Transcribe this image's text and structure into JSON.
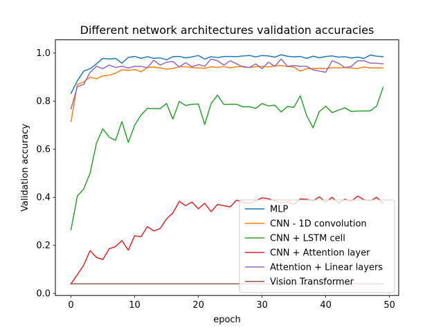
{
  "chart_data": {
    "type": "line",
    "title": "Different network architectures validation accuracies",
    "xlabel": "epoch",
    "ylabel": "Validation accuracy",
    "xlim": [
      -2.45,
      51.45
    ],
    "ylim": [
      -0.0085,
      1.055
    ],
    "xticks": [
      0,
      10,
      20,
      30,
      40,
      50
    ],
    "yticks": [
      0.0,
      0.2,
      0.4,
      0.6,
      0.8,
      1.0
    ],
    "xtick_labels": [
      "0",
      "10",
      "20",
      "30",
      "40",
      "50"
    ],
    "ytick_labels": [
      "0.0",
      "0.2",
      "0.4",
      "0.6",
      "0.8",
      "1.0"
    ],
    "grid": false,
    "legend_position": "lower-right",
    "series": [
      {
        "name": "MLP",
        "color": "#1f77b4",
        "values": [
          0.832,
          0.885,
          0.925,
          0.935,
          0.955,
          0.978,
          0.975,
          0.978,
          0.958,
          0.982,
          0.986,
          0.978,
          0.985,
          0.978,
          0.98,
          0.972,
          0.985,
          0.986,
          0.98,
          0.984,
          0.99,
          0.975,
          0.985,
          0.981,
          0.986,
          0.986,
          0.985,
          0.988,
          0.99,
          0.984,
          0.99,
          0.988,
          0.983,
          0.993,
          0.987,
          0.984,
          0.986,
          0.978,
          0.987,
          0.98,
          0.986,
          0.988,
          0.983,
          0.985,
          0.979,
          0.983,
          0.978,
          0.992,
          0.987,
          0.985
        ]
      },
      {
        "name": "CNN - 1D convolution",
        "color": "#ff7f0e",
        "values": [
          0.715,
          0.87,
          0.88,
          0.9,
          0.893,
          0.905,
          0.908,
          0.916,
          0.931,
          0.928,
          0.932,
          0.922,
          0.94,
          0.942,
          0.938,
          0.933,
          0.936,
          0.943,
          0.943,
          0.94,
          0.938,
          0.937,
          0.943,
          0.94,
          0.944,
          0.938,
          0.943,
          0.945,
          0.94,
          0.943,
          0.945,
          0.942,
          0.946,
          0.948,
          0.944,
          0.942,
          0.925,
          0.935,
          0.935,
          0.937,
          0.935,
          0.939,
          0.938,
          0.94,
          0.938,
          0.936,
          0.942,
          0.938,
          0.938,
          0.938
        ]
      },
      {
        "name": "CNN + LSTM cell",
        "color": "#2ca02c",
        "values": [
          0.265,
          0.405,
          0.435,
          0.5,
          0.625,
          0.685,
          0.65,
          0.637,
          0.715,
          0.628,
          0.7,
          0.742,
          0.77,
          0.769,
          0.769,
          0.79,
          0.725,
          0.799,
          0.782,
          0.787,
          0.788,
          0.703,
          0.79,
          0.825,
          0.786,
          0.787,
          0.787,
          0.776,
          0.777,
          0.77,
          0.79,
          0.78,
          0.783,
          0.755,
          0.778,
          0.774,
          0.822,
          0.74,
          0.689,
          0.757,
          0.779,
          0.752,
          0.763,
          0.772,
          0.757,
          0.759,
          0.759,
          0.76,
          0.78,
          0.857
        ]
      },
      {
        "name": "CNN + Attention layer",
        "color": "#d62728",
        "values": [
          0.04,
          0.078,
          0.118,
          0.178,
          0.15,
          0.141,
          0.186,
          0.195,
          0.22,
          0.18,
          0.24,
          0.236,
          0.278,
          0.26,
          0.27,
          0.31,
          0.335,
          0.383,
          0.365,
          0.38,
          0.352,
          0.375,
          0.34,
          0.37,
          0.365,
          0.36,
          0.388,
          0.38,
          0.375,
          0.385,
          0.398,
          0.394,
          0.385,
          0.378,
          0.38,
          0.37,
          0.393,
          0.392,
          0.385,
          0.402,
          0.38,
          0.4,
          0.375,
          0.392,
          0.383,
          0.405,
          0.39,
          0.385,
          0.4,
          0.375
        ]
      },
      {
        "name": "Attention + Linear layers",
        "color": "#9467bd",
        "values": [
          0.768,
          0.86,
          0.87,
          0.92,
          0.945,
          0.935,
          0.95,
          0.94,
          0.945,
          0.938,
          0.945,
          0.944,
          0.94,
          0.97,
          0.95,
          0.962,
          0.965,
          0.942,
          0.96,
          0.943,
          0.952,
          0.945,
          0.975,
          0.968,
          0.95,
          0.968,
          0.955,
          0.942,
          0.94,
          0.955,
          0.935,
          0.962,
          0.945,
          0.975,
          0.945,
          0.948,
          0.945,
          0.945,
          0.93,
          0.925,
          0.92,
          0.968,
          0.958,
          0.94,
          0.944,
          0.968,
          0.968,
          0.958,
          0.958,
          0.955
        ]
      },
      {
        "name": "Vision Transformer",
        "color": "#8c564b",
        "values": [
          0.04,
          0.04,
          0.04,
          0.04,
          0.04,
          0.04,
          0.04,
          0.04,
          0.04,
          0.04,
          0.04,
          0.04,
          0.04,
          0.04,
          0.04,
          0.04,
          0.04,
          0.04,
          0.04,
          0.04,
          0.04,
          0.04,
          0.04,
          0.04,
          0.04,
          0.04,
          0.04,
          0.04,
          0.04,
          0.04,
          0.04,
          0.04,
          0.04,
          0.04,
          0.04,
          0.04,
          0.04,
          0.04,
          0.04,
          0.04,
          0.04,
          0.04,
          0.04,
          0.04,
          0.04,
          0.04,
          0.04,
          0.04,
          0.04,
          0.04
        ]
      }
    ]
  }
}
